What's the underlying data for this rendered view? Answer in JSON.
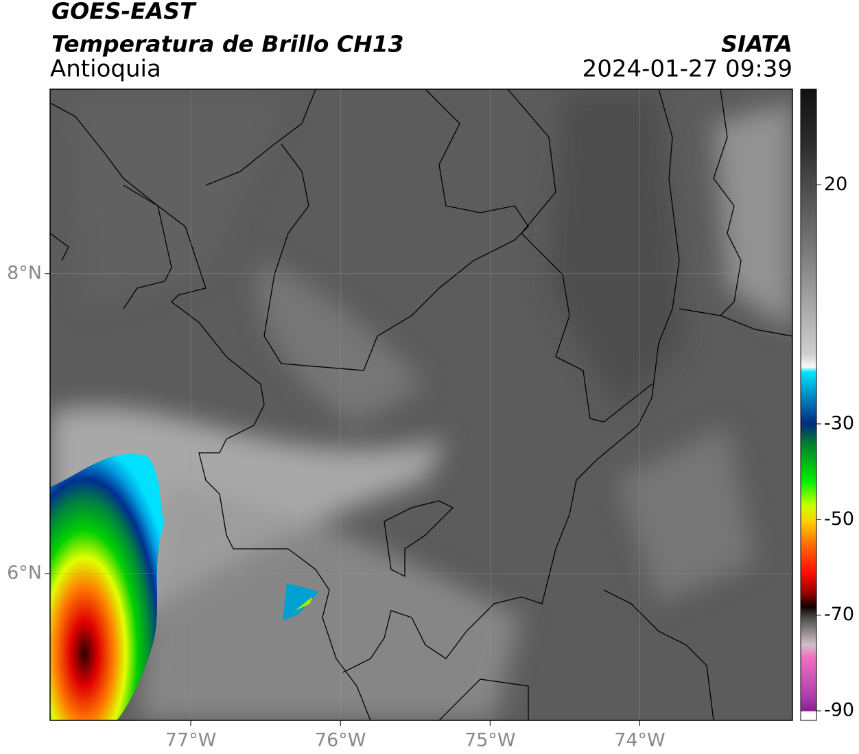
{
  "header": {
    "title": "GOES-EAST",
    "subtitle": "Temperatura de Brillo CH13",
    "region": "Antioquia",
    "source": "SIATA",
    "datetime": "2024-01-27 09:39"
  },
  "map": {
    "xlim": [
      -77.94,
      -72.98
    ],
    "ylim": [
      5.02,
      9.23
    ],
    "xticks": [
      {
        "value": -77,
        "label": "77°W"
      },
      {
        "value": -76,
        "label": "76°W"
      },
      {
        "value": -75,
        "label": "75°W"
      },
      {
        "value": -74,
        "label": "74°W"
      }
    ],
    "yticks": [
      {
        "value": 8,
        "label": "8°N"
      },
      {
        "value": 6,
        "label": "6°N"
      }
    ],
    "grid": true
  },
  "colorbar": {
    "lim": [
      -92,
      40
    ],
    "ticks": [
      20,
      -30,
      -50,
      -70,
      -90
    ]
  }
}
